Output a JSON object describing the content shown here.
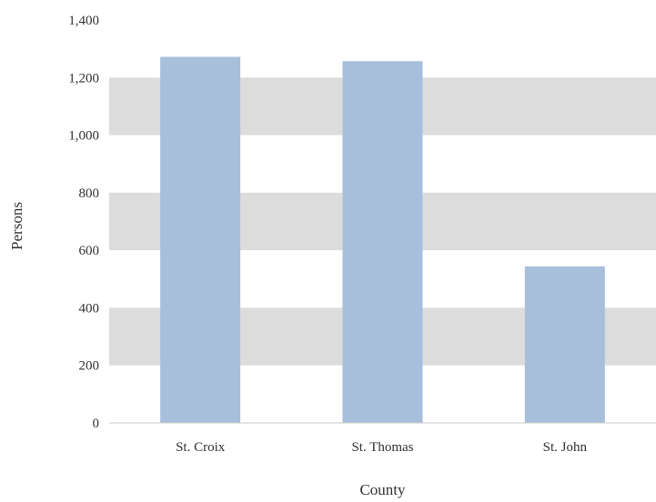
{
  "chart_data": {
    "type": "bar",
    "title": "",
    "xlabel": "County",
    "ylabel": "Persons",
    "categories": [
      "St. Croix",
      "St. Thomas",
      "St. John"
    ],
    "values": [
      1272,
      1257,
      544
    ],
    "ylim": [
      0,
      1400
    ],
    "yticks": [
      0,
      200,
      400,
      600,
      800,
      1000,
      1200,
      1400
    ],
    "ytick_labels": [
      "0",
      "200",
      "400",
      "600",
      "800",
      "1,000",
      "1,200",
      "1,400"
    ],
    "grid": "alternating horizontal bands",
    "legend": "none",
    "colors": {
      "bar": "#a7bfdb",
      "band": "#dcdcdc",
      "text": "#333333",
      "axis": "#c8c8c8"
    }
  }
}
